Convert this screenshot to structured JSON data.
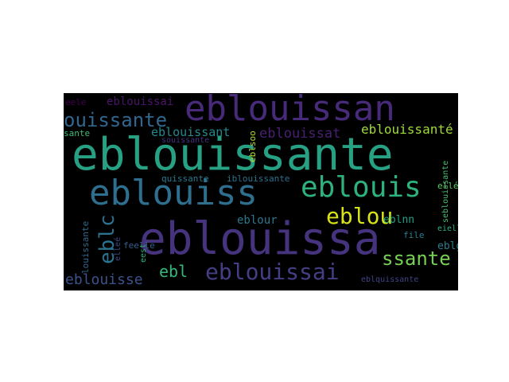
{
  "word_cloud": {
    "background": "#000000",
    "words": [
      {
        "text": "eblouissante",
        "color": "#26a184"
      },
      {
        "text": "eblouissa",
        "color": "#46337e"
      },
      {
        "text": "eblouissan",
        "color": "#472a7a"
      },
      {
        "text": "eblouiss",
        "color": "#2e6e8e"
      },
      {
        "text": "eblouis",
        "color": "#2db27d"
      },
      {
        "text": "eblouissai",
        "color": "#433e85"
      },
      {
        "text": "eblou",
        "color": "#d8e219"
      },
      {
        "text": "ssante",
        "color": "#75d054"
      },
      {
        "text": "ouissante",
        "color": "#31678e"
      },
      {
        "text": "eblc",
        "color": "#2c728e"
      },
      {
        "text": "eblouisse",
        "color": "#3b528b"
      },
      {
        "text": "ebl",
        "color": "#35b779"
      },
      {
        "text": "eblouissat",
        "color": "#482071"
      },
      {
        "text": "eblouissant",
        "color": "#23888e"
      },
      {
        "text": "eblouissanté",
        "color": "#9fda3a"
      },
      {
        "text": "eblouissai",
        "color": "#481668"
      },
      {
        "text": "eblour",
        "color": "#2a788e"
      },
      {
        "text": "eblnn",
        "color": "#1fa187"
      },
      {
        "text": "eblg",
        "color": "#277f8e"
      },
      {
        "text": "quissante",
        "color": "#2a788e"
      },
      {
        "text": "iblouissante",
        "color": "#2c728e"
      },
      {
        "text": "feelle",
        "color": "#355f8d"
      },
      {
        "text": "eele",
        "color": "#440154"
      },
      {
        "text": "sante",
        "color": "#3fbc73"
      },
      {
        "text": "souissante",
        "color": "#46337e"
      },
      {
        "text": "eblsoo",
        "color": "#b5de2b"
      },
      {
        "text": "ellé",
        "color": "#5ec962"
      },
      {
        "text": "eielle",
        "color": "#2db27d"
      },
      {
        "text": "file",
        "color": "#277f8e"
      },
      {
        "text": "seblouissante",
        "color": "#4ac16d"
      },
      {
        "text": "louissante",
        "color": "#306a8e"
      },
      {
        "text": "elleé",
        "color": "#3e4989"
      },
      {
        "text": "eest",
        "color": "#2db27d"
      },
      {
        "text": "eblquissante",
        "color": "#414487"
      }
    ]
  }
}
